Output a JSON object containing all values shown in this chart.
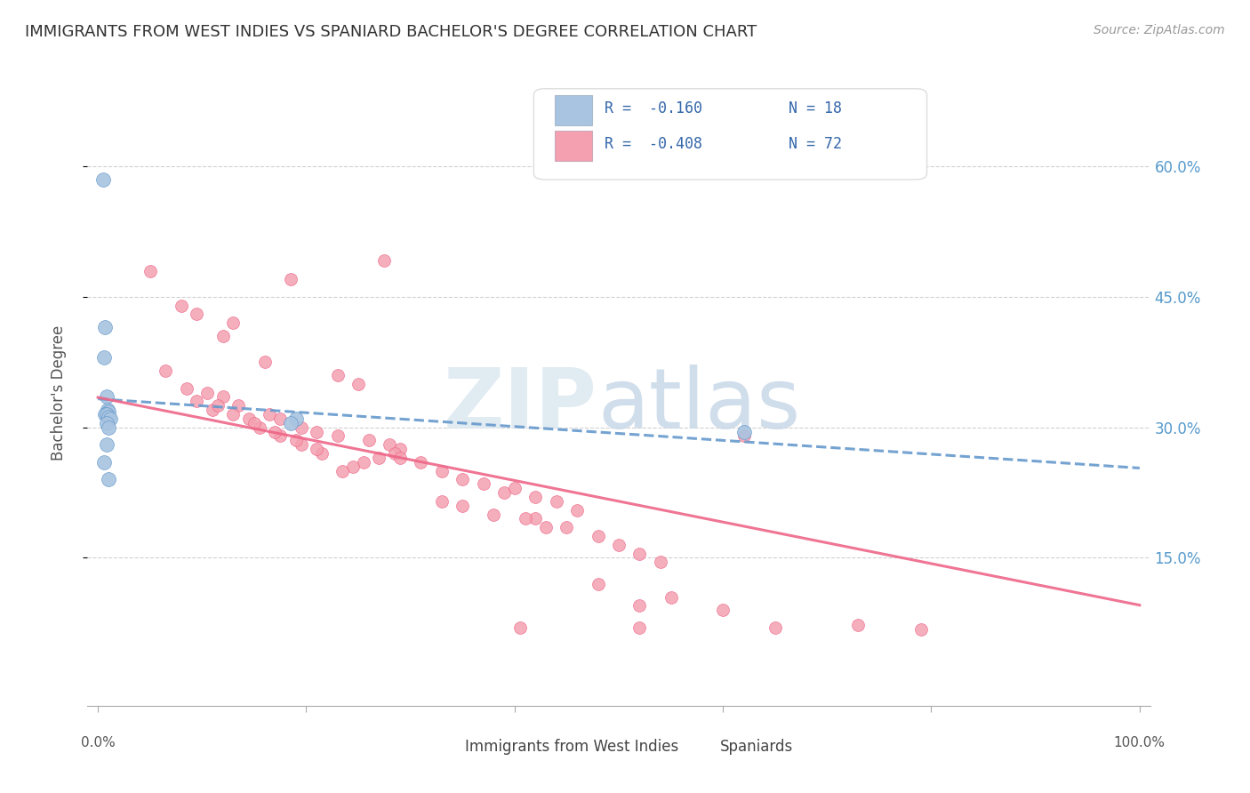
{
  "title": "IMMIGRANTS FROM WEST INDIES VS SPANIARD BACHELOR'S DEGREE CORRELATION CHART",
  "source": "Source: ZipAtlas.com",
  "ylabel": "Bachelor's Degree",
  "yticks": [
    "15.0%",
    "30.0%",
    "45.0%",
    "60.0%"
  ],
  "ytick_vals": [
    0.15,
    0.3,
    0.45,
    0.6
  ],
  "legend_r_blue": "R =  -0.160",
  "legend_n_blue": "N = 18",
  "legend_r_pink": "R =  -0.408",
  "legend_n_pink": "N = 72",
  "legend_label_blue": "Immigrants from West Indies",
  "legend_label_pink": "Spaniards",
  "color_blue": "#a8c4e0",
  "color_pink": "#f4a0b0",
  "color_blue_dark": "#6699cc",
  "color_pink_dark": "#ee6688",
  "background_color": "#ffffff",
  "blue_x": [
    0.005,
    0.007,
    0.006,
    0.008,
    0.009,
    0.01,
    0.007,
    0.008,
    0.01,
    0.012,
    0.008,
    0.01,
    0.19,
    0.185,
    0.008,
    0.006,
    0.62,
    0.01
  ],
  "blue_y": [
    0.585,
    0.415,
    0.38,
    0.335,
    0.32,
    0.318,
    0.315,
    0.315,
    0.312,
    0.31,
    0.305,
    0.3,
    0.31,
    0.305,
    0.28,
    0.26,
    0.295,
    0.24
  ],
  "pink_x": [
    0.05,
    0.08,
    0.275,
    0.185,
    0.095,
    0.13,
    0.12,
    0.16,
    0.065,
    0.23,
    0.25,
    0.085,
    0.105,
    0.12,
    0.135,
    0.165,
    0.175,
    0.195,
    0.21,
    0.23,
    0.26,
    0.28,
    0.29,
    0.285,
    0.27,
    0.255,
    0.245,
    0.235,
    0.145,
    0.155,
    0.175,
    0.195,
    0.215,
    0.29,
    0.31,
    0.33,
    0.35,
    0.37,
    0.39,
    0.33,
    0.35,
    0.38,
    0.42,
    0.45,
    0.48,
    0.5,
    0.52,
    0.54,
    0.4,
    0.42,
    0.44,
    0.46,
    0.41,
    0.43,
    0.11,
    0.13,
    0.15,
    0.17,
    0.19,
    0.21,
    0.095,
    0.115,
    0.62,
    0.52,
    0.73,
    0.79,
    0.405,
    0.52,
    0.48,
    0.55,
    0.6,
    0.65
  ],
  "pink_y": [
    0.48,
    0.44,
    0.492,
    0.47,
    0.43,
    0.42,
    0.405,
    0.375,
    0.365,
    0.36,
    0.35,
    0.345,
    0.34,
    0.335,
    0.325,
    0.315,
    0.31,
    0.3,
    0.295,
    0.29,
    0.285,
    0.28,
    0.275,
    0.27,
    0.265,
    0.26,
    0.255,
    0.25,
    0.31,
    0.3,
    0.29,
    0.28,
    0.27,
    0.265,
    0.26,
    0.25,
    0.24,
    0.235,
    0.225,
    0.215,
    0.21,
    0.2,
    0.195,
    0.185,
    0.175,
    0.165,
    0.155,
    0.145,
    0.23,
    0.22,
    0.215,
    0.205,
    0.195,
    0.185,
    0.32,
    0.315,
    0.305,
    0.295,
    0.285,
    0.275,
    0.33,
    0.325,
    0.29,
    0.095,
    0.073,
    0.068,
    0.07,
    0.07,
    0.12,
    0.105,
    0.09,
    0.07
  ]
}
